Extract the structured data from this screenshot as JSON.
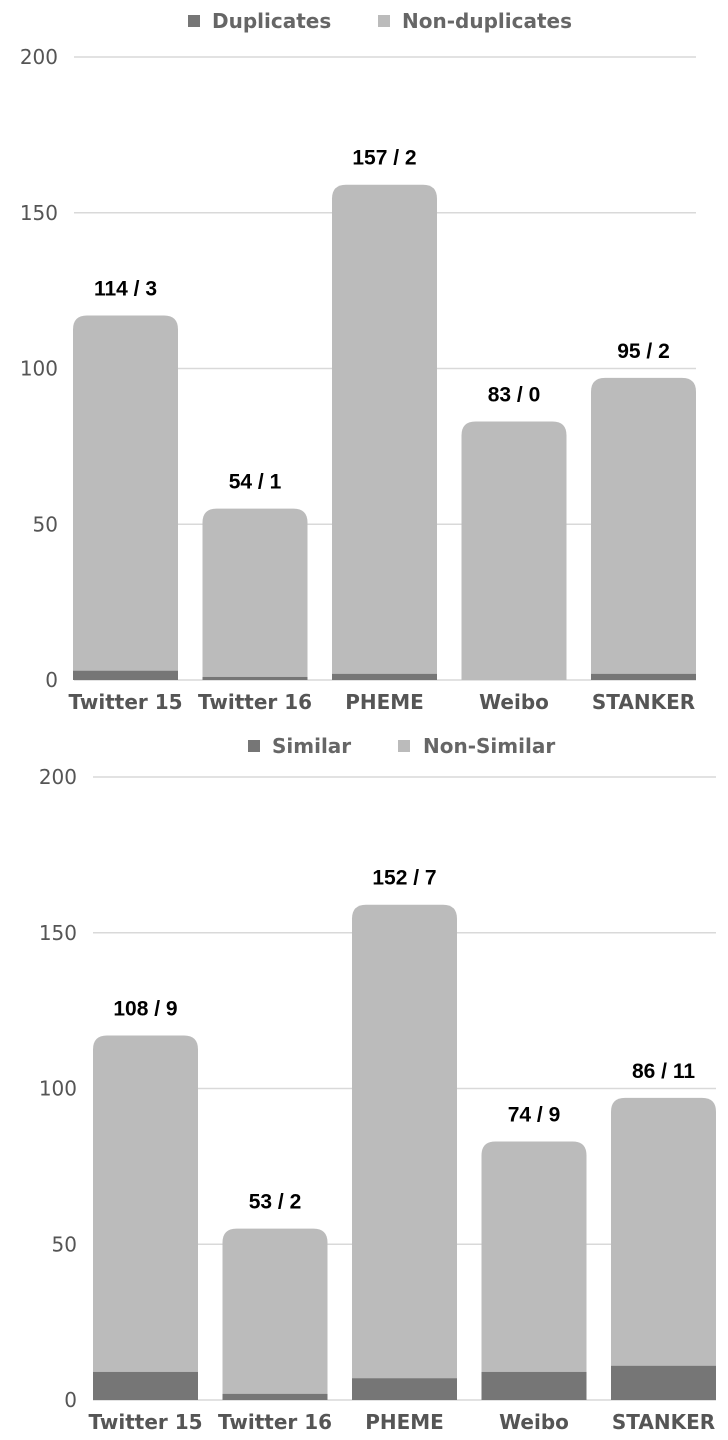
{
  "colors": {
    "dark": "#767676",
    "light": "#bbbbbb",
    "grid": "#d9d9d9"
  },
  "chart_data": [
    {
      "type": "bar",
      "stacked": true,
      "title": "",
      "xlabel": "",
      "ylabel": "",
      "categories": [
        "Twitter 15",
        "Twitter 16",
        "PHEME",
        "Weibo",
        "STANKER"
      ],
      "series": [
        {
          "name": "Duplicates",
          "color": "#767676",
          "values": [
            3,
            1,
            2,
            0,
            2
          ]
        },
        {
          "name": "Non-duplicates",
          "color": "#bbbbbb",
          "values": [
            114,
            54,
            157,
            83,
            95
          ]
        }
      ],
      "data_labels": [
        "114 / 3",
        "54 / 1",
        "157 / 2",
        "83 / 0",
        "95 / 2"
      ],
      "ylim": [
        0,
        200
      ],
      "yticks": [
        0,
        50,
        100,
        150,
        200
      ],
      "grid": true,
      "legend": "top"
    },
    {
      "type": "bar",
      "stacked": true,
      "title": "",
      "xlabel": "",
      "ylabel": "",
      "categories": [
        "Twitter 15",
        "Twitter 16",
        "PHEME",
        "Weibo",
        "STANKER"
      ],
      "series": [
        {
          "name": "Similar",
          "color": "#767676",
          "values": [
            9,
            2,
            7,
            9,
            11
          ]
        },
        {
          "name": "Non-Similar",
          "color": "#bbbbbb",
          "values": [
            108,
            53,
            152,
            74,
            86
          ]
        }
      ],
      "data_labels": [
        "108 / 9",
        "53 / 2",
        "152 / 7",
        "74 / 9",
        "86 / 11"
      ],
      "ylim": [
        0,
        200
      ],
      "yticks": [
        0,
        50,
        100,
        150,
        200
      ],
      "grid": true,
      "legend": "top"
    }
  ]
}
